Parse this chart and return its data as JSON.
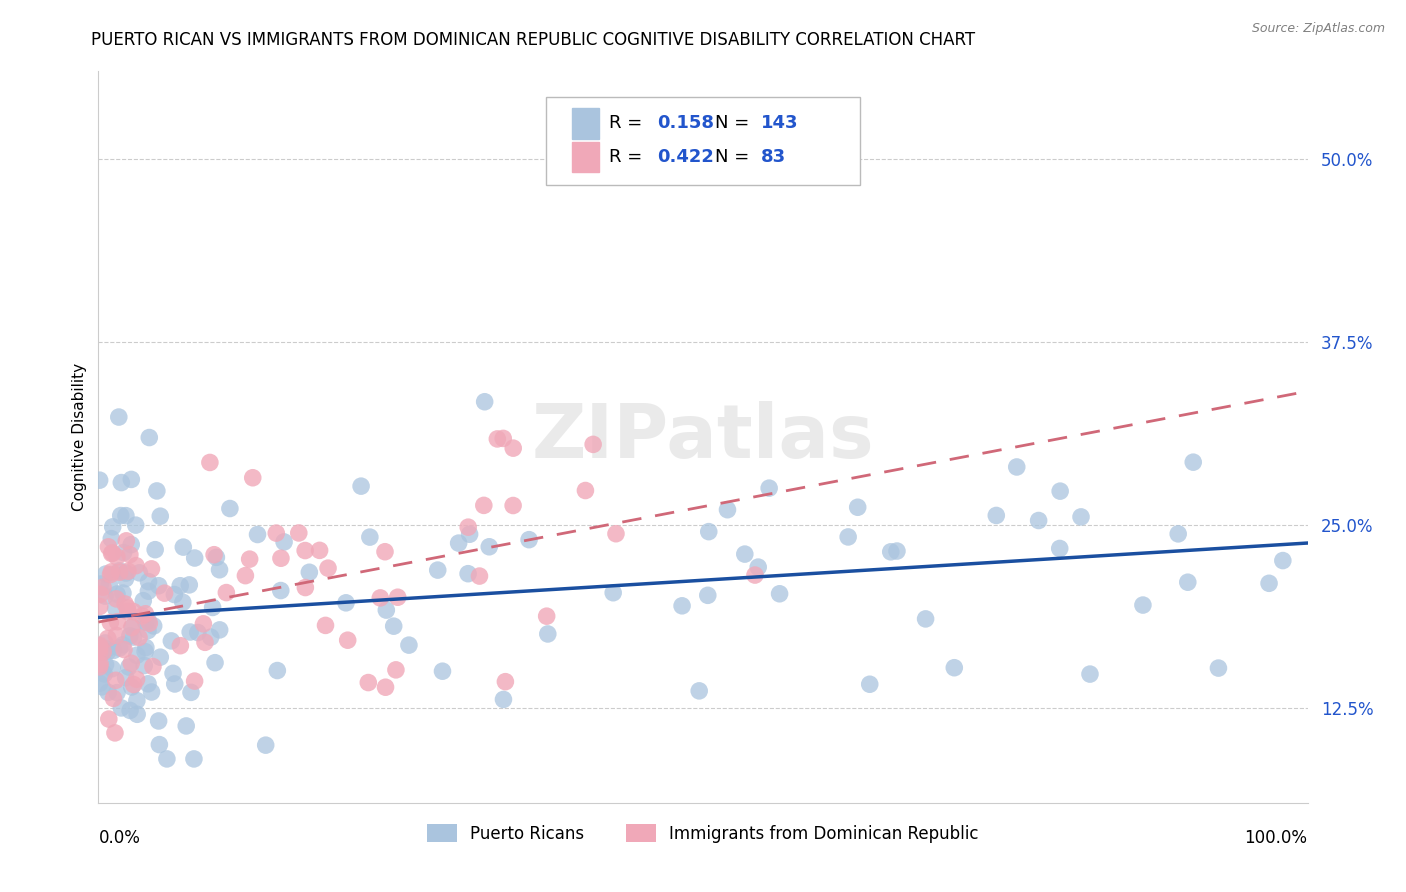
{
  "title": "PUERTO RICAN VS IMMIGRANTS FROM DOMINICAN REPUBLIC COGNITIVE DISABILITY CORRELATION CHART",
  "source": "Source: ZipAtlas.com",
  "ylabel": "Cognitive Disability",
  "yticks": [
    0.125,
    0.25,
    0.375,
    0.5
  ],
  "ytick_labels": [
    "12.5%",
    "25.0%",
    "37.5%",
    "50.0%"
  ],
  "xlim": [
    0,
    1.0
  ],
  "ylim": [
    0.06,
    0.56
  ],
  "legend_label1": "Puerto Ricans",
  "legend_label2": "Immigrants from Dominican Republic",
  "R1": 0.158,
  "N1": 143,
  "R2": 0.422,
  "N2": 83,
  "blue_color": "#aac4de",
  "pink_color": "#f0a8b8",
  "blue_line_color": "#1a4fa0",
  "pink_line_color": "#d06878",
  "watermark": "ZIPatlas",
  "title_fontsize": 12,
  "axis_label_fontsize": 11,
  "tick_fontsize": 12,
  "legend_fontsize": 13,
  "blue_val_color": "#2255cc",
  "grid_color": "#cccccc"
}
